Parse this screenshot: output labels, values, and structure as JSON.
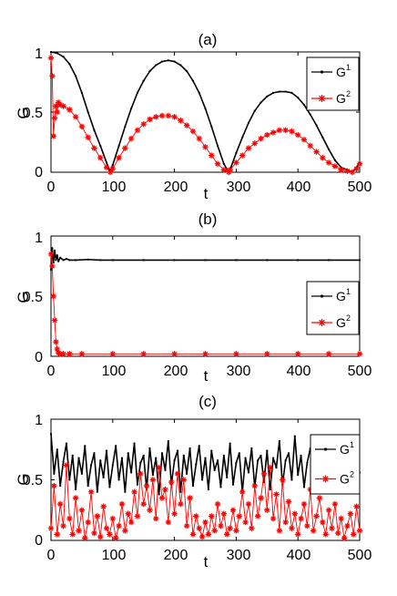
{
  "chart_data": [
    {
      "type": "line",
      "title": "(a)",
      "xlabel": "t",
      "ylabel": "G",
      "xlim": [
        0,
        500
      ],
      "ylim": [
        0,
        1
      ],
      "xticks": [
        "0",
        "100",
        "200",
        "300",
        "400",
        "500"
      ],
      "yticks": [
        "0",
        "0.5",
        "1"
      ],
      "legend_position": "top-right",
      "series": [
        {
          "name_main": "G",
          "name_sup": "1",
          "color": "#000000",
          "marker": "dot",
          "x": [
            0,
            10,
            20,
            30,
            40,
            50,
            60,
            70,
            80,
            90,
            96,
            100,
            110,
            120,
            130,
            140,
            150,
            160,
            170,
            180,
            190,
            200,
            210,
            220,
            230,
            240,
            250,
            260,
            270,
            280,
            288,
            290,
            300,
            310,
            320,
            330,
            340,
            350,
            360,
            370,
            380,
            390,
            400,
            410,
            420,
            430,
            440,
            450,
            460,
            470,
            480,
            488,
            495,
            500
          ],
          "y": [
            1.0,
            0.99,
            0.96,
            0.9,
            0.8,
            0.66,
            0.5,
            0.35,
            0.22,
            0.08,
            0.0,
            0.06,
            0.22,
            0.38,
            0.53,
            0.66,
            0.76,
            0.84,
            0.89,
            0.92,
            0.93,
            0.92,
            0.89,
            0.84,
            0.76,
            0.66,
            0.53,
            0.38,
            0.22,
            0.07,
            0.0,
            0.02,
            0.16,
            0.29,
            0.41,
            0.51,
            0.58,
            0.63,
            0.66,
            0.67,
            0.67,
            0.66,
            0.62,
            0.56,
            0.48,
            0.39,
            0.29,
            0.19,
            0.1,
            0.04,
            0.02,
            0.0,
            0.04,
            0.08
          ]
        },
        {
          "name_main": "G",
          "name_sup": "2",
          "color": "#ff0000",
          "marker": "star",
          "x": [
            0,
            2,
            4,
            6,
            8,
            10,
            12,
            15,
            20,
            30,
            40,
            50,
            60,
            70,
            80,
            90,
            96,
            100,
            110,
            120,
            130,
            140,
            150,
            160,
            170,
            180,
            190,
            200,
            210,
            220,
            230,
            240,
            250,
            260,
            270,
            280,
            288,
            290,
            300,
            310,
            320,
            330,
            340,
            350,
            360,
            370,
            380,
            390,
            400,
            410,
            420,
            430,
            440,
            450,
            460,
            470,
            480,
            488,
            495,
            500
          ],
          "y": [
            0.95,
            0.8,
            0.3,
            0.45,
            0.55,
            0.5,
            0.58,
            0.56,
            0.55,
            0.52,
            0.46,
            0.38,
            0.29,
            0.2,
            0.12,
            0.04,
            0.0,
            0.03,
            0.12,
            0.2,
            0.28,
            0.35,
            0.4,
            0.44,
            0.46,
            0.47,
            0.47,
            0.46,
            0.43,
            0.39,
            0.34,
            0.28,
            0.21,
            0.14,
            0.07,
            0.02,
            0.0,
            0.02,
            0.08,
            0.14,
            0.2,
            0.24,
            0.28,
            0.31,
            0.33,
            0.35,
            0.35,
            0.34,
            0.31,
            0.27,
            0.22,
            0.17,
            0.12,
            0.08,
            0.05,
            0.02,
            0.01,
            0.0,
            0.03,
            0.07
          ]
        }
      ]
    },
    {
      "type": "line",
      "title": "(b)",
      "xlabel": "t",
      "ylabel": "G",
      "xlim": [
        0,
        500
      ],
      "ylim": [
        0,
        1
      ],
      "xticks": [
        "0",
        "100",
        "200",
        "300",
        "400",
        "500"
      ],
      "yticks": [
        "0",
        "0.5",
        "1"
      ],
      "legend_position": "right",
      "series": [
        {
          "name_main": "G",
          "name_sup": "1",
          "color": "#000000",
          "marker": "dot",
          "x": [
            0,
            2,
            4,
            6,
            8,
            10,
            12,
            15,
            20,
            25,
            30,
            40,
            60,
            80,
            100,
            150,
            200,
            250,
            300,
            350,
            400,
            450,
            500
          ],
          "y": [
            0.72,
            0.9,
            0.78,
            0.88,
            0.8,
            0.84,
            0.79,
            0.82,
            0.8,
            0.81,
            0.8,
            0.8,
            0.805,
            0.8,
            0.8,
            0.8,
            0.8,
            0.8,
            0.8,
            0.8,
            0.8,
            0.8,
            0.8
          ]
        },
        {
          "name_main": "G",
          "name_sup": "2",
          "color": "#ff0000",
          "marker": "star",
          "x": [
            0,
            2,
            4,
            6,
            8,
            10,
            12,
            15,
            20,
            30,
            50,
            100,
            150,
            200,
            250,
            300,
            350,
            400,
            450,
            500
          ],
          "y": [
            0.85,
            0.75,
            0.5,
            0.3,
            0.12,
            0.06,
            0.03,
            0.02,
            0.02,
            0.02,
            0.02,
            0.02,
            0.02,
            0.02,
            0.02,
            0.02,
            0.02,
            0.02,
            0.02,
            0.02
          ]
        }
      ]
    },
    {
      "type": "line",
      "title": "(c)",
      "xlabel": "t",
      "ylabel": "G",
      "xlim": [
        0,
        500
      ],
      "ylim": [
        0,
        1
      ],
      "xticks": [
        "0",
        "100",
        "200",
        "300",
        "400",
        "500"
      ],
      "yticks": [
        "0",
        "0.5",
        "1"
      ],
      "legend_position": "right",
      "series": [
        {
          "name_main": "G",
          "name_sup": "1",
          "color": "#000000",
          "marker": "dot",
          "x": [
            0,
            5,
            10,
            15,
            20,
            25,
            30,
            35,
            40,
            45,
            50,
            55,
            60,
            65,
            70,
            75,
            80,
            85,
            90,
            95,
            100,
            105,
            110,
            115,
            120,
            125,
            130,
            135,
            140,
            145,
            150,
            155,
            160,
            165,
            170,
            175,
            180,
            185,
            190,
            195,
            200,
            205,
            210,
            215,
            220,
            225,
            230,
            235,
            240,
            245,
            250,
            255,
            260,
            265,
            270,
            275,
            280,
            285,
            290,
            295,
            300,
            305,
            310,
            315,
            320,
            325,
            330,
            335,
            340,
            345,
            350,
            355,
            360,
            365,
            370,
            375,
            380,
            385,
            390,
            395,
            400,
            405,
            410,
            415,
            420,
            425,
            430,
            435,
            440,
            445,
            450,
            455,
            460,
            465,
            470,
            475,
            480,
            485,
            490,
            495,
            500
          ],
          "y": [
            0.88,
            0.55,
            0.75,
            0.45,
            0.65,
            0.8,
            0.5,
            0.7,
            0.42,
            0.68,
            0.55,
            0.78,
            0.45,
            0.62,
            0.72,
            0.4,
            0.66,
            0.52,
            0.74,
            0.44,
            0.62,
            0.78,
            0.5,
            0.68,
            0.4,
            0.72,
            0.56,
            0.8,
            0.46,
            0.64,
            0.7,
            0.42,
            0.76,
            0.54,
            0.68,
            0.38,
            0.72,
            0.58,
            0.82,
            0.46,
            0.66,
            0.74,
            0.4,
            0.7,
            0.55,
            0.76,
            0.45,
            0.63,
            0.78,
            0.5,
            0.68,
            0.42,
            0.74,
            0.58,
            0.66,
            0.44,
            0.7,
            0.52,
            0.8,
            0.46,
            0.64,
            0.72,
            0.4,
            0.68,
            0.56,
            0.76,
            0.44,
            0.66,
            0.7,
            0.48,
            0.74,
            0.42,
            0.68,
            0.6,
            0.82,
            0.46,
            0.66,
            0.72,
            0.5,
            0.86,
            0.54,
            0.7,
            0.44,
            0.64,
            0.76,
            0.48,
            0.68,
            0.42,
            0.72,
            0.58,
            0.66,
            0.46,
            0.74,
            0.52,
            0.7,
            0.44,
            0.6,
            0.68,
            0.5,
            0.64,
            0.56
          ]
        },
        {
          "name_main": "G",
          "name_sup": "2",
          "color": "#ff0000",
          "marker": "star",
          "x": [
            0,
            5,
            10,
            15,
            20,
            25,
            30,
            35,
            40,
            45,
            50,
            55,
            60,
            65,
            70,
            75,
            80,
            85,
            90,
            95,
            100,
            105,
            110,
            115,
            120,
            125,
            130,
            135,
            140,
            145,
            150,
            155,
            160,
            165,
            170,
            175,
            180,
            185,
            190,
            195,
            200,
            205,
            210,
            215,
            220,
            225,
            230,
            235,
            240,
            245,
            250,
            255,
            260,
            265,
            270,
            275,
            280,
            285,
            290,
            295,
            300,
            305,
            310,
            315,
            320,
            325,
            330,
            335,
            340,
            345,
            350,
            355,
            360,
            365,
            370,
            375,
            380,
            385,
            390,
            395,
            400,
            405,
            410,
            415,
            420,
            425,
            430,
            435,
            440,
            445,
            450,
            455,
            460,
            465,
            470,
            475,
            480,
            485,
            490,
            495,
            500
          ],
          "y": [
            0.1,
            0.45,
            0.05,
            0.3,
            0.12,
            0.62,
            0.18,
            0.05,
            0.35,
            0.08,
            0.25,
            0.02,
            0.15,
            0.4,
            0.06,
            0.2,
            0.03,
            0.28,
            0.1,
            0.05,
            0.18,
            0.02,
            0.12,
            0.3,
            0.08,
            0.22,
            0.15,
            0.4,
            0.2,
            0.55,
            0.3,
            0.45,
            0.25,
            0.5,
            0.18,
            0.6,
            0.35,
            0.42,
            0.15,
            0.48,
            0.22,
            0.55,
            0.3,
            0.5,
            0.12,
            0.35,
            0.05,
            0.2,
            0.1,
            0.03,
            0.15,
            0.05,
            0.2,
            0.08,
            0.3,
            0.12,
            0.22,
            0.05,
            0.1,
            0.25,
            0.08,
            0.2,
            0.4,
            0.15,
            0.3,
            0.1,
            0.45,
            0.2,
            0.35,
            0.55,
            0.25,
            0.6,
            0.18,
            0.38,
            0.08,
            0.5,
            0.15,
            0.32,
            0.1,
            0.22,
            0.05,
            0.18,
            0.3,
            0.12,
            0.42,
            0.08,
            0.2,
            0.35,
            0.15,
            0.05,
            0.25,
            0.1,
            0.3,
            0.06,
            0.18,
            0.02,
            0.12,
            0.22,
            0.05,
            0.28,
            0.08
          ]
        }
      ]
    }
  ]
}
